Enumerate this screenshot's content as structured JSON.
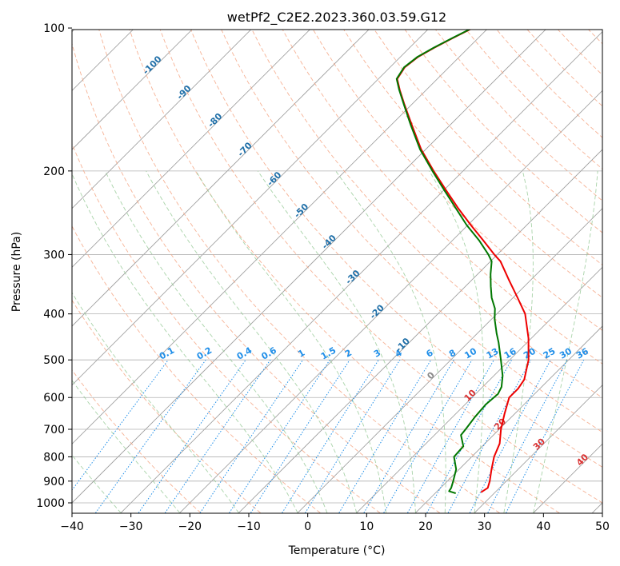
{
  "chart_data": {
    "type": "line",
    "subtype": "skew-t log-p diagram",
    "title": "wetPf2_C2E2.2023.360.03.59.G12",
    "xlabel": "Temperature (°C)",
    "ylabel": "Pressure (hPa)",
    "xlim": [
      -40,
      50
    ],
    "ylim": [
      1050,
      100
    ],
    "x_ticks": [
      -40,
      -30,
      -20,
      -10,
      0,
      10,
      20,
      30,
      40,
      50
    ],
    "x_tick_labels": [
      "−40",
      "−30",
      "−20",
      "−10",
      "0",
      "10",
      "20",
      "30",
      "40",
      "50"
    ],
    "y_ticks": [
      1000,
      900,
      800,
      700,
      600,
      500,
      400,
      300,
      200,
      100
    ],
    "y_tick_labels": [
      "1000",
      "900",
      "800",
      "700",
      "600",
      "500",
      "400",
      "300",
      "200",
      "100"
    ],
    "grid": true,
    "colors": {
      "temperature": "#ee0000",
      "dewpoint": "#007700",
      "dry_adiabat": "#f4a582",
      "moist_adiabat": "#93c893",
      "mixing_ratio": "#1f8ee8",
      "isotherm": "#999999",
      "label_dry": "#1f6fa8",
      "label_mix": "#1f8ee8",
      "label_red": "#d93030",
      "label_gray": "#888888"
    },
    "series": [
      {
        "name": "Temperature",
        "color": "#ee0000",
        "points": [
          [
            950,
            27.6
          ],
          [
            930,
            28.0
          ],
          [
            900,
            27.2
          ],
          [
            850,
            25.5
          ],
          [
            800,
            23.8
          ],
          [
            750,
            22.5
          ],
          [
            700,
            20.3
          ],
          [
            650,
            18.3
          ],
          [
            600,
            16.3
          ],
          [
            575,
            16.3
          ],
          [
            550,
            15.8
          ],
          [
            500,
            13.2
          ],
          [
            450,
            9.5
          ],
          [
            400,
            4.8
          ],
          [
            370,
            0.8
          ],
          [
            340,
            -3.6
          ],
          [
            310,
            -8.3
          ],
          [
            300,
            -10.5
          ],
          [
            280,
            -14.8
          ],
          [
            260,
            -19.5
          ],
          [
            240,
            -24.4
          ],
          [
            220,
            -29.5
          ],
          [
            200,
            -35.0
          ],
          [
            180,
            -40.8
          ],
          [
            160,
            -46.5
          ],
          [
            145,
            -51.2
          ],
          [
            135,
            -54.5
          ],
          [
            128,
            -56.8
          ],
          [
            121,
            -57.5
          ],
          [
            115,
            -57.0
          ],
          [
            110,
            -55.8
          ],
          [
            105,
            -54.3
          ],
          [
            100,
            -52.6
          ]
        ]
      },
      {
        "name": "Dewpoint",
        "color": "#007700",
        "points": [
          [
            955,
            23.5
          ],
          [
            945,
            22.0
          ],
          [
            930,
            21.8
          ],
          [
            900,
            21.0
          ],
          [
            850,
            19.5
          ],
          [
            800,
            17.0
          ],
          [
            760,
            16.8
          ],
          [
            720,
            14.5
          ],
          [
            700,
            14.3
          ],
          [
            660,
            13.8
          ],
          [
            620,
            13.5
          ],
          [
            590,
            13.8
          ],
          [
            570,
            13.2
          ],
          [
            540,
            11.5
          ],
          [
            500,
            8.5
          ],
          [
            460,
            5.2
          ],
          [
            440,
            3.3
          ],
          [
            410,
            0.5
          ],
          [
            390,
            -1.2
          ],
          [
            370,
            -3.6
          ],
          [
            350,
            -5.7
          ],
          [
            330,
            -7.8
          ],
          [
            310,
            -9.8
          ],
          [
            300,
            -11.5
          ],
          [
            280,
            -15.5
          ],
          [
            260,
            -20.2
          ],
          [
            240,
            -24.8
          ],
          [
            220,
            -29.8
          ],
          [
            200,
            -35.2
          ],
          [
            180,
            -41.0
          ],
          [
            160,
            -46.7
          ],
          [
            145,
            -51.3
          ],
          [
            135,
            -54.6
          ],
          [
            128,
            -56.9
          ],
          [
            121,
            -57.6
          ],
          [
            115,
            -57.1
          ],
          [
            110,
            -55.9
          ],
          [
            105,
            -54.4
          ],
          [
            100,
            -52.7
          ]
        ]
      }
    ],
    "background_lines": {
      "isotherms_step": 10,
      "dry_adiabats_theta_K": [
        -20,
        -10,
        0,
        10,
        20,
        30,
        40,
        50,
        60,
        70,
        80,
        90,
        100,
        110,
        120,
        130,
        140,
        150,
        160,
        170,
        180,
        190,
        200,
        210,
        220,
        230,
        240,
        250,
        260,
        270,
        280,
        290,
        300,
        310,
        320,
        330,
        340,
        350,
        360,
        370,
        380,
        390,
        400,
        410,
        420
      ],
      "moist_adiabats_start_C": [
        -20,
        -10,
        0,
        10,
        20,
        30,
        40
      ],
      "mixing_ratios_gkg": [
        0.1,
        0.2,
        0.4,
        0.6,
        1,
        1.5,
        2,
        3,
        4,
        6,
        8,
        10,
        13,
        16,
        20,
        25,
        30,
        36
      ]
    },
    "annotations": {
      "dry_adiabat_labels": [
        {
          "text": "-100",
          "p": 121,
          "t": -100
        },
        {
          "text": "-90",
          "p": 138,
          "t": -90
        },
        {
          "text": "-80",
          "p": 158,
          "t": -80
        },
        {
          "text": "-70",
          "p": 182,
          "t": -70
        },
        {
          "text": "-60",
          "p": 210,
          "t": -60
        },
        {
          "text": "-50",
          "p": 245,
          "t": -50
        },
        {
          "text": "-40",
          "p": 285,
          "t": -40
        },
        {
          "text": "-30",
          "p": 338,
          "t": -30
        },
        {
          "text": "-20",
          "p": 400,
          "t": -20
        },
        {
          "text": "-10",
          "p": 470,
          "t": -10
        }
      ],
      "mixing_ratio_labels": [
        "0.1",
        "0.2",
        "0.4",
        "0.6",
        "1",
        "1.5",
        "2",
        "3",
        "4",
        "6",
        "8",
        "10",
        "13",
        "16",
        "20",
        "25",
        "30",
        "36"
      ],
      "moist_labels_red": [
        {
          "text": "10",
          "p": 600,
          "t": 10
        },
        {
          "text": "20",
          "p": 690,
          "t": 20
        },
        {
          "text": "30",
          "p": 760,
          "t": 30
        },
        {
          "text": "40",
          "p": 820,
          "t": 40
        }
      ],
      "isotherm_label_gray": [
        {
          "text": "0",
          "p": 545,
          "t": 0
        }
      ]
    }
  }
}
